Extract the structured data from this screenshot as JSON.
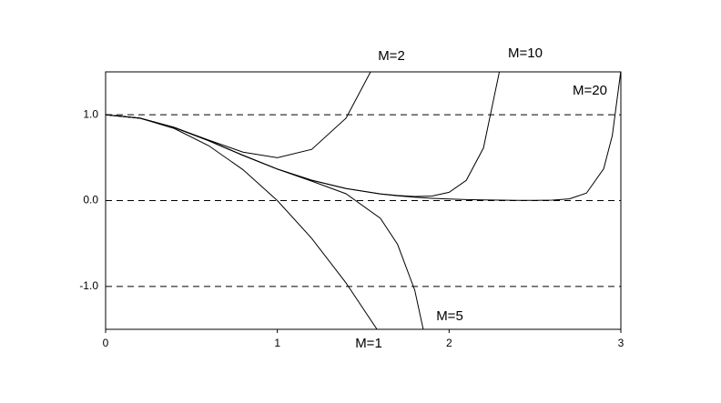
{
  "chart_data": {
    "type": "line",
    "x": [
      0,
      0.2,
      0.4,
      0.6,
      0.8,
      1.0,
      1.2,
      1.4,
      1.6,
      1.7,
      1.8,
      1.9,
      2.0,
      2.1,
      2.2,
      2.3,
      2.4,
      2.5,
      2.6,
      2.7,
      2.8,
      2.9,
      2.95,
      3.0
    ],
    "series": [
      {
        "name": "M=1",
        "color": "#000000",
        "values": [
          1,
          0.96,
          0.84,
          0.64,
          0.36,
          0,
          -0.44,
          -0.96,
          -1.56,
          null,
          null,
          null,
          null,
          null,
          null,
          null,
          null,
          null,
          null,
          null,
          null,
          null,
          null,
          null
        ]
      },
      {
        "name": "M=2",
        "color": "#000000",
        "values": [
          1,
          0.9608,
          0.8528,
          0.7048,
          0.5648,
          0.5,
          0.5968,
          0.9608,
          1.7168,
          null,
          null,
          null,
          null,
          null,
          null,
          null,
          null,
          null,
          null,
          null,
          null,
          null,
          null,
          null
        ]
      },
      {
        "name": "M=5",
        "color": "#000000",
        "values": [
          1,
          0.9608,
          0.8521,
          0.6977,
          0.5274,
          0.3667,
          0.2267,
          0.0797,
          -0.2061,
          -0.5103,
          -1.0437,
          -1.9677,
          null,
          null,
          null,
          null,
          null,
          null,
          null,
          null,
          null,
          null,
          null,
          null
        ]
      },
      {
        "name": "M=10",
        "color": "#000000",
        "values": [
          1,
          0.9608,
          0.8521,
          0.6977,
          0.5273,
          0.3679,
          0.2369,
          0.1409,
          0.078,
          0.059,
          0.0473,
          0.0531,
          0.0968,
          0.236,
          0.6133,
          1.5712,
          null,
          null,
          null,
          null,
          null,
          null,
          null,
          null
        ]
      },
      {
        "name": "M=20",
        "color": "#000000",
        "values": [
          1,
          0.9608,
          0.8521,
          0.6977,
          0.5273,
          0.3679,
          0.2369,
          0.1409,
          0.0773,
          0.0556,
          0.0392,
          0.0271,
          0.0183,
          0.0122,
          0.0079,
          0.005,
          0.0033,
          0.0027,
          0.0053,
          0.0197,
          0.0874,
          0.371,
          0.756,
          1.514
        ]
      }
    ],
    "xlim": [
      0,
      3
    ],
    "xticks": [
      0,
      1,
      2,
      3
    ],
    "ylim": [
      -1.5,
      1.5
    ],
    "yticks": [
      {
        "value": 1,
        "label": "1.0"
      },
      {
        "value": 0,
        "label": "0.0"
      },
      {
        "value": -1,
        "label": "-1.0"
      }
    ],
    "grid": true
  }
}
